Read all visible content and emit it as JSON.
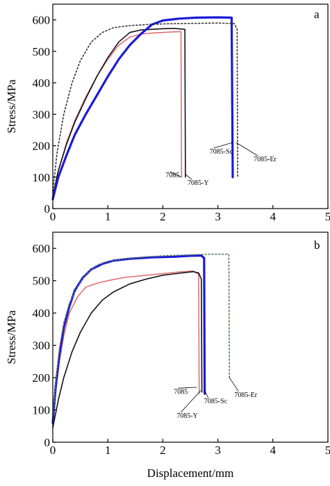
{
  "chart_data": [
    {
      "type": "line",
      "panel_label": "a",
      "xlabel": "",
      "ylabel": "Stress/MPa",
      "xlim": [
        0,
        5
      ],
      "ylim": [
        0,
        650
      ],
      "x_ticks": [
        "0",
        "1",
        "2",
        "3",
        "4",
        "5"
      ],
      "y_ticks": [
        "0",
        "100",
        "200",
        "300",
        "400",
        "500",
        "600"
      ],
      "grid": false,
      "series": [
        {
          "name": "7085",
          "color": "#e07070",
          "style": "solid",
          "points": [
            [
              0,
              40
            ],
            [
              0.1,
              120
            ],
            [
              0.25,
              210
            ],
            [
              0.4,
              280
            ],
            [
              0.6,
              355
            ],
            [
              0.8,
              420
            ],
            [
              1.0,
              475
            ],
            [
              1.2,
              520
            ],
            [
              1.4,
              545
            ],
            [
              1.6,
              555
            ],
            [
              1.8,
              558
            ],
            [
              2.0,
              560
            ],
            [
              2.2,
              562
            ],
            [
              2.33,
              563
            ],
            [
              2.34,
              100
            ]
          ],
          "label_at": [
            2.33,
            100
          ],
          "label_pos": [
            2.05,
            100
          ]
        },
        {
          "name": "7085-Y",
          "color": "#111111",
          "style": "solid",
          "points": [
            [
              0,
              40
            ],
            [
              0.1,
              120
            ],
            [
              0.25,
              205
            ],
            [
              0.4,
              275
            ],
            [
              0.6,
              350
            ],
            [
              0.8,
              420
            ],
            [
              1.0,
              480
            ],
            [
              1.2,
              530
            ],
            [
              1.4,
              560
            ],
            [
              1.6,
              568
            ],
            [
              1.8,
              570
            ],
            [
              2.0,
              572
            ],
            [
              2.2,
              573
            ],
            [
              2.4,
              570
            ],
            [
              2.41,
              100
            ]
          ],
          "label_at": [
            2.4,
            110
          ],
          "label_pos": [
            2.45,
            75
          ]
        },
        {
          "name": "7085-Sc",
          "color": "#1a1ad8",
          "style": "solid",
          "width": 3.2,
          "points": [
            [
              0,
              30
            ],
            [
              0.1,
              100
            ],
            [
              0.25,
              170
            ],
            [
              0.4,
              235
            ],
            [
              0.6,
              300
            ],
            [
              0.8,
              360
            ],
            [
              1.0,
              420
            ],
            [
              1.2,
              475
            ],
            [
              1.4,
              520
            ],
            [
              1.6,
              555
            ],
            [
              1.8,
              585
            ],
            [
              2.0,
              598
            ],
            [
              2.3,
              604
            ],
            [
              2.6,
              607
            ],
            [
              3.0,
              608
            ],
            [
              3.25,
              607
            ],
            [
              3.27,
              100
            ]
          ],
          "label_at": [
            3.27,
            210
          ],
          "label_pos": [
            2.85,
            175
          ]
        },
        {
          "name": "7085-Er",
          "color": "#333333",
          "style": "dotted",
          "points": [
            [
              0,
              55
            ],
            [
              0.08,
              180
            ],
            [
              0.2,
              300
            ],
            [
              0.35,
              400
            ],
            [
              0.5,
              470
            ],
            [
              0.7,
              530
            ],
            [
              0.9,
              560
            ],
            [
              1.1,
              575
            ],
            [
              1.4,
              582
            ],
            [
              1.8,
              586
            ],
            [
              2.2,
              588
            ],
            [
              2.6,
              589
            ],
            [
              3.0,
              590
            ],
            [
              3.3,
              588
            ],
            [
              3.35,
              570
            ],
            [
              3.36,
              100
            ]
          ],
          "label_at": [
            3.33,
            210
          ],
          "label_pos": [
            3.65,
            150
          ]
        }
      ]
    },
    {
      "type": "line",
      "panel_label": "b",
      "xlabel": "Displacement/mm",
      "ylabel": "Stress/MPa",
      "xlim": [
        0,
        5
      ],
      "ylim": [
        0,
        650
      ],
      "x_ticks": [
        "0",
        "1",
        "2",
        "3",
        "4",
        "5"
      ],
      "y_ticks": [
        "0",
        "100",
        "200",
        "300",
        "400",
        "500",
        "600"
      ],
      "grid": false,
      "series": [
        {
          "name": "7085",
          "color": "#e07070",
          "style": "solid",
          "points": [
            [
              0,
              45
            ],
            [
              0.05,
              150
            ],
            [
              0.12,
              250
            ],
            [
              0.2,
              330
            ],
            [
              0.3,
              400
            ],
            [
              0.45,
              450
            ],
            [
              0.6,
              480
            ],
            [
              0.8,
              492
            ],
            [
              1.0,
              500
            ],
            [
              1.3,
              510
            ],
            [
              1.6,
              515
            ],
            [
              2.0,
              522
            ],
            [
              2.3,
              527
            ],
            [
              2.55,
              530
            ],
            [
              2.65,
              520
            ],
            [
              2.66,
              150
            ]
          ],
          "label_at": [
            2.62,
            170
          ],
          "label_pos": [
            2.2,
            150
          ]
        },
        {
          "name": "7085-Y",
          "color": "#111111",
          "style": "solid",
          "points": [
            [
              0,
              45
            ],
            [
              0.1,
              130
            ],
            [
              0.2,
              200
            ],
            [
              0.35,
              280
            ],
            [
              0.5,
              340
            ],
            [
              0.7,
              400
            ],
            [
              0.9,
              440
            ],
            [
              1.1,
              465
            ],
            [
              1.4,
              490
            ],
            [
              1.7,
              505
            ],
            [
              2.0,
              517
            ],
            [
              2.3,
              523
            ],
            [
              2.55,
              528
            ],
            [
              2.65,
              524
            ],
            [
              2.7,
              505
            ],
            [
              2.71,
              155
            ]
          ],
          "label_at": [
            2.69,
            160
          ],
          "label_pos": [
            2.25,
            75
          ]
        },
        {
          "name": "7085-Sc",
          "color": "#1a1ad8",
          "style": "solid",
          "width": 3.2,
          "points": [
            [
              0,
              60
            ],
            [
              0.05,
              170
            ],
            [
              0.12,
              270
            ],
            [
              0.2,
              355
            ],
            [
              0.3,
              420
            ],
            [
              0.4,
              470
            ],
            [
              0.55,
              510
            ],
            [
              0.7,
              535
            ],
            [
              0.9,
              552
            ],
            [
              1.1,
              562
            ],
            [
              1.4,
              568
            ],
            [
              1.8,
              572
            ],
            [
              2.2,
              574
            ],
            [
              2.5,
              577
            ],
            [
              2.7,
              578
            ],
            [
              2.75,
              570
            ],
            [
              2.76,
              150
            ]
          ],
          "label_at": [
            2.76,
            160
          ],
          "label_pos": [
            2.75,
            120
          ]
        },
        {
          "name": "7085-Er",
          "color": "#5a7a5a",
          "style": "dotted",
          "points": [
            [
              0,
              70
            ],
            [
              0.05,
              180
            ],
            [
              0.12,
              290
            ],
            [
              0.2,
              370
            ],
            [
              0.3,
              430
            ],
            [
              0.45,
              480
            ],
            [
              0.6,
              520
            ],
            [
              0.8,
              548
            ],
            [
              1.0,
              560
            ],
            [
              1.3,
              568
            ],
            [
              1.7,
              574
            ],
            [
              2.1,
              578
            ],
            [
              2.5,
              580
            ],
            [
              2.8,
              582
            ],
            [
              3.2,
              582
            ],
            [
              3.21,
              200
            ]
          ],
          "label_at": [
            3.21,
            200
          ],
          "label_pos": [
            3.3,
            140
          ]
        }
      ]
    }
  ]
}
